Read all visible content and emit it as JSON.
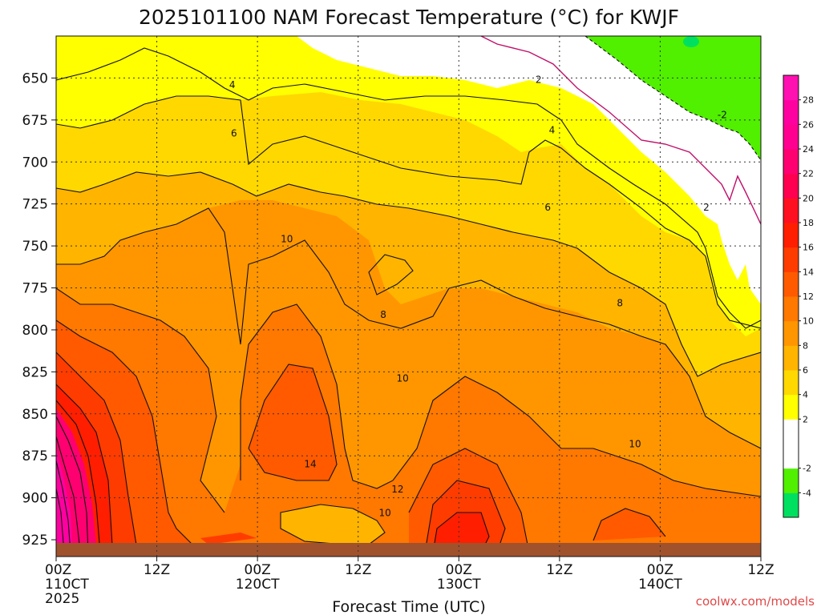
{
  "chart_data": {
    "type": "heatmap",
    "title": "2025101100 NAM Forecast Temperature (°C) for KWJF",
    "xlabel": "Forecast Time (UTC)",
    "ylabel": "",
    "x_hours": [
      0,
      12,
      24,
      36,
      48,
      60,
      72,
      84
    ],
    "x_ticks": [
      {
        "line1": "00Z",
        "line2": "110CT",
        "line3": "2025"
      },
      {
        "line1": "12Z",
        "line2": "",
        "line3": ""
      },
      {
        "line1": "00Z",
        "line2": "120CT",
        "line3": ""
      },
      {
        "line1": "12Z",
        "line2": "",
        "line3": ""
      },
      {
        "line1": "00Z",
        "line2": "130CT",
        "line3": ""
      },
      {
        "line1": "12Z",
        "line2": "",
        "line3": ""
      },
      {
        "line1": "00Z",
        "line2": "140CT",
        "line3": ""
      },
      {
        "line1": "12Z",
        "line2": "",
        "line3": ""
      }
    ],
    "y_pressure_levels": [
      650,
      675,
      700,
      725,
      750,
      775,
      800,
      825,
      850,
      875,
      900,
      925
    ],
    "y_labels": [
      "650",
      "675",
      "700",
      "725",
      "750",
      "775",
      "800",
      "825",
      "850",
      "875",
      "900",
      "925"
    ],
    "ylim": [
      625,
      935
    ],
    "xlim": [
      0,
      84
    ],
    "grid": true,
    "colorbar": {
      "levels": [
        -6,
        -4,
        -2,
        0,
        2,
        4,
        6,
        8,
        10,
        12,
        14,
        16,
        18,
        20,
        22,
        24,
        26,
        28,
        30
      ],
      "tick_labels": [
        "-4",
        "-2",
        "2",
        "4",
        "6",
        "8",
        "10",
        "12",
        "14",
        "16",
        "18",
        "20",
        "22",
        "24",
        "26",
        "28"
      ],
      "colors": [
        "#00e060",
        "#50f000",
        "#ffffff",
        "#ffffff",
        "#ffff00",
        "#ffd800",
        "#ffb400",
        "#ff9600",
        "#ff7800",
        "#ff5a00",
        "#ff3c00",
        "#ff1e00",
        "#ff1020",
        "#ff0050",
        "#ff0070",
        "#ff0090",
        "#ff00a0",
        "#ff10b0"
      ]
    },
    "contour_labels": [
      {
        "text": "4",
        "hour": 21.0,
        "p": 654
      },
      {
        "text": "6",
        "hour": 21.2,
        "p": 683
      },
      {
        "text": "2",
        "hour": 57.5,
        "p": 651
      },
      {
        "text": "4",
        "hour": 59.1,
        "p": 681
      },
      {
        "text": "-2",
        "hour": 79.4,
        "p": 672
      },
      {
        "text": "2",
        "hour": 77.5,
        "p": 727
      },
      {
        "text": "6",
        "hour": 58.6,
        "p": 727
      },
      {
        "text": "10",
        "hour": 27.5,
        "p": 746
      },
      {
        "text": "8",
        "hour": 39.0,
        "p": 791
      },
      {
        "text": "8",
        "hour": 67.2,
        "p": 784
      },
      {
        "text": "10",
        "hour": 41.3,
        "p": 829
      },
      {
        "text": "10",
        "hour": 69.0,
        "p": 868
      },
      {
        "text": "14",
        "hour": 30.3,
        "p": 880
      },
      {
        "text": "12",
        "hour": 40.7,
        "p": 895
      },
      {
        "text": "10",
        "hour": 39.2,
        "p": 909
      }
    ],
    "credit": "coolwx.com/models"
  }
}
